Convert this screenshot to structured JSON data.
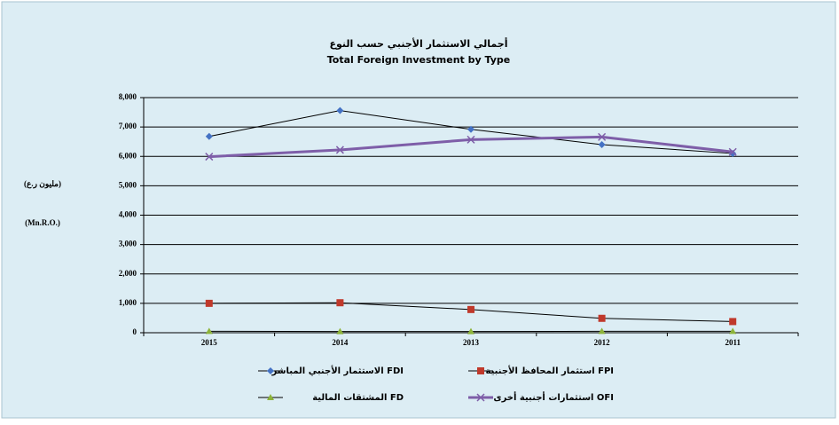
{
  "chart_data": {
    "type": "line",
    "title": "أجمالي الاستثمار الأجنبي حسب النوع",
    "subtitle": "Total Foreign Investment by Type",
    "y_label": "(مليون ر.ع)",
    "y_label_2": "(Mn.R.O.)",
    "categories": [
      "2015",
      "2014",
      "2013",
      "2012",
      "2011"
    ],
    "series": [
      {
        "name": "الاستثمار الأجنبي المباشر FDI",
        "color": "#4472c4",
        "line_color": "#000000",
        "marker": "diamond",
        "values": [
          6680,
          7560,
          6920,
          6400,
          6100
        ]
      },
      {
        "name": "استثمار المحافظ الأجنبية FPI",
        "color": "#c0392b",
        "line_color": "#000000",
        "marker": "square",
        "values": [
          1000,
          1020,
          790,
          490,
          380
        ]
      },
      {
        "name": "المشتقات المالية FD",
        "color": "#8db33a",
        "line_color": "#000000",
        "marker": "triangle",
        "values": [
          50,
          40,
          40,
          50,
          50
        ]
      },
      {
        "name": "استثمارات أجنبية أخرى OFI",
        "color": "#7e5ea8",
        "line_color": "#7e5ea8",
        "marker": "x",
        "values": [
          5990,
          6220,
          6570,
          6660,
          6150
        ]
      }
    ],
    "ylim": [
      0,
      8000
    ],
    "yticks": [
      0,
      {
        "value": 1000,
        "label": "1,000"
      },
      {
        "value": 2000,
        "label": "2,000"
      },
      {
        "value": 3000,
        "label": "3,000"
      },
      {
        "value": 4000,
        "label": "4,000"
      },
      {
        "value": 5000,
        "label": "5,000"
      },
      {
        "value": 6000,
        "label": "6,000"
      },
      {
        "value": 7000,
        "label": "7,000"
      },
      {
        "value": 8000,
        "label": "8,000"
      }
    ],
    "grid": true
  }
}
